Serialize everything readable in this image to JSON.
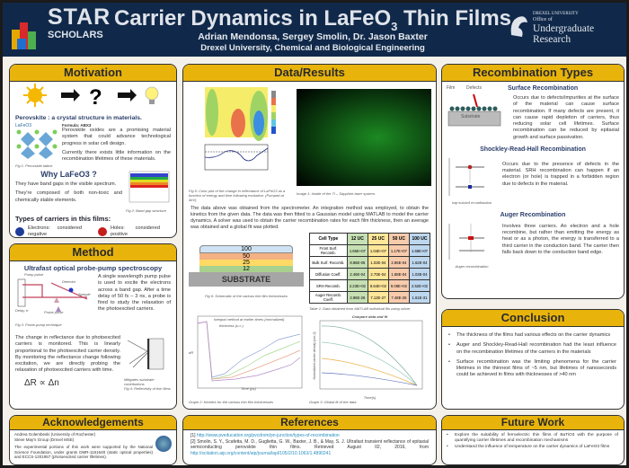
{
  "header": {
    "logo_text": "STAR",
    "logo_sub": "SCHOLARS",
    "title_main": "Carrier Dynamics in LaFeO",
    "title_sub": "3",
    "title_end": " Thin Films",
    "authors": "Adrian Mendonsa, Sergey Smolin, Dr. Jason Baxter",
    "affiliation": "Drexel University, Chemical and Biological Engineering",
    "drexel_l1": "DREXEL UNIVERSITY",
    "drexel_l2": "Office of",
    "drexel_l3": "Undergraduate Research"
  },
  "colors": {
    "header_bg": "#10294a",
    "panel_header": "#e8b40c",
    "heading_blue": "#2b3f6b"
  },
  "motivation": {
    "title": "Motivation",
    "perov_heading": "Perovskite : a crystal structure in materials.",
    "lafeo3_label": "LaFeO3",
    "formula": "Formula: ABX3",
    "p1": "Perovskite oxides are a promising material system that could advance technological progress in solar cell design.",
    "p2": "Currently there exists little information on the recombination lifetimes of these materials.",
    "fig1": "Fig 1: Perovskite lattice",
    "why": "Why LaFeO3 ?",
    "w1": "They have band gaps in the visible spectrum.",
    "w2": "They're composed of both non-toxic and chemically stable elements.",
    "fig2": "Fig 2: Band gap structure",
    "carriers": "Types of carriers in this films:",
    "electrons": "Electrons: considered negative",
    "holes": "Holes: considered positive"
  },
  "method": {
    "title": "Method",
    "subtitle": "Ultrafast optical probe-pump spectroscopy",
    "pump": "Pump pulse",
    "detector": "Detector",
    "sample": "Sample",
    "delay": "Delay, tr",
    "probe": "Probe pulse",
    "p1": "A single wavelength pump pulse is used to excite the electrons across a band gap. After a time delay of 50 fs – 3 ns, a probe is fired to study the relaxation of the photoexcited carriers.",
    "fig3": "Fig 3: Probe-pump technique",
    "p2": "The change in reflectance due to photoexcited carriers is monitored. This is linearly proportional to the photoexcited carrier density. By monitoring the reflectance change following excitation, we are directly probing the relaxation of photoexcited carriers with time.",
    "formula": "ΔR ∝ Δn",
    "note": "Mitigates substrate contributions",
    "fig4": "Fig 4: Reflectivity of thin films"
  },
  "results": {
    "title": "Data/Results",
    "fig5": "Fig 5: Color plot of the change in reflectance of LaFeO3 as a function of energy and time following excitation. (Pumped at 4eV)",
    "image1": "Image 1: Inside of the Ti – Sapphire laser system.",
    "p1": "The data above was obtained from the spectrometer. An integration method was employed, to obtain the kinetics from the given data. The data was then fitted to a Gaussian model using MATLAB to model the carrier dynamics. A solver was used to obtain the carrier recombination rates for each film thickness, then an average was obtained and a global fit was plotted.",
    "layers": [
      "100",
      "50",
      "25",
      "12"
    ],
    "substrate": "SUBSTRATE",
    "fig6": "Fig 6: Schematic of the various thin film thicknesses",
    "table": {
      "headers": [
        "Cell Type",
        "12 UC",
        "25 UC",
        "50 UC",
        "100 UC"
      ],
      "rows": [
        [
          "Front Surf. Recomb.",
          "1.65E+07",
          "1.04E+07",
          "1.17E+07",
          "1.68E+07"
        ],
        [
          "Bulk Surf. Recomb.",
          "8.86E-05",
          "1.02E-04",
          "2.86E-04",
          "1.62E-04"
        ],
        [
          "Diffusion Coeff.",
          "2.46E-04",
          "2.70E-04",
          "1.88E-04",
          "1.03E-04"
        ],
        [
          "SRH Recomb.",
          "2.23E+02",
          "8.64E+02",
          "9.08E+02",
          "2.52E+02"
        ],
        [
          "Auger Recomb. Coeff.",
          "2.86E-26",
          "7.12E-27",
          "7.48E-28",
          "1.61E-31"
        ]
      ],
      "colors": [
        "#c6e0b4",
        "#ffe699",
        "#f8cbad",
        "#bdd7ee"
      ]
    },
    "table_caption": "Table 1: Data obtained from MATLAB individual fits using solver",
    "graph2_title": "Integral method at earlier times (normalized)",
    "graph2_legend_title": "thickness (u.c.)",
    "graph2_xlabel": "Time (ps)",
    "graph2_ylabel": "dR",
    "graph2_caption": "Graph 2: Kinetics for the various thin film thicknesses",
    "graph3_title": "Compare data and fit",
    "graph3_xlabel": "Time(s)",
    "graph3_ylabel": "Normalized carrier density (cm-3)",
    "graph3_caption": "Graph 3: Global fit of the data"
  },
  "recomb": {
    "title": "Recombination Types",
    "surface": "Surface Recombination",
    "film": "Film",
    "defects": "Defects",
    "substrate": "Substrate",
    "surface_text": "Occurs due to defects/impurities at the surface of the material can cause surface recombination. If many defects are present, it can cause rapid depletion of carriers, thus reducing solar cell lifetimes. Surface recombination can be reduced by epitaxial growth and surface passivation.",
    "srh": "Shockley-Read-Hall Recombination",
    "srh_text": "Occurs due to the presence of defects in the material. SRH recombination can happen if an electron (or hole) is trapped in a forbidden region due to defects in the material.",
    "srh_label": "trap-assisted recombination",
    "auger": "Auger Recombination",
    "auger_text": "Involves three carriers. An electron and a hole recombine, but rather than emitting the energy as heat or as a photon, the energy is transferred to a third carrier in the conduction band. The carrier then falls back down to the conduction band edge.",
    "auger_label": "Auger recombination"
  },
  "conclusion": {
    "title": "Conclusion",
    "items": [
      "The thickness of the films had various effects on the carrier dynamics",
      "Auger and Shockley-Read-Hall recombination had the least influence on the recombination lifetimes of the carriers in the materials",
      "Surface recombination was the limiting phenomena for the carrier lifetimes in the thinnest films of ~5 nm, but lifetimes of nanoseconds could be achieved in films with thicknesses of >40 nm"
    ]
  },
  "ack": {
    "title": "Acknowledgements",
    "l1": "Andrea Golembeski (University of Rochester)",
    "l2": "Steve May's Group (Drexel MSE)",
    "l3": "The experimental portions of this work were supported by the National Science Foundation, under grants DMR-1151649 (static optical properties) and ECCS-1201957 (photoexcited carrier lifetimes)."
  },
  "refs": {
    "title": "References",
    "r1_num": "[1]",
    "r1_link": "http://www.pveducation.org/pvcdrom/pn-junction/types-of-recombination",
    "r2": "[2] Smolin, S. Y., Scafetta, M. D., Guglietta, G. W., Baxter, J. B., & May, S. J. Ultrafast transient reflectance of epitaxial semiconducting perovskite thin films. Retrieved August 02, 2016, from",
    "r2_link": "http://scitation.aip.org/content/aip/journal/apl/105/2/10.1063/1.4890241"
  },
  "future": {
    "title": "Future Work",
    "items": [
      "Explore the suitability of ferroelectric thin films of BaTiO3 with the purpose of quantifying carrier lifetimes and recombination mechanisms",
      "Understand the influence of temperature on the carrier dynamics of LaFeO3 films"
    ]
  }
}
